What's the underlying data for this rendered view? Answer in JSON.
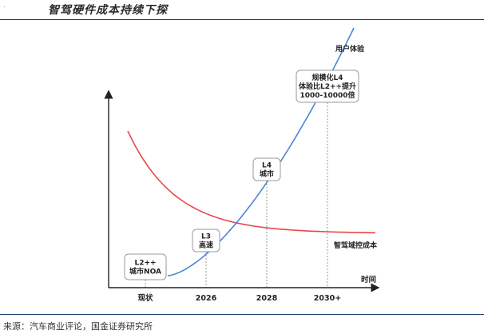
{
  "page": {
    "marker": ".",
    "title": "智驾硬件成本持续下探",
    "source": "来源：汽车商业评论，国金证券研究所"
  },
  "chart_data": {
    "type": "line",
    "title": "",
    "xlabel": "时间",
    "ylabel": "",
    "categories": [
      "现状",
      "2026",
      "2028",
      "2030+"
    ],
    "grid": false,
    "series": [
      {
        "name": "用户体验",
        "color": "#4a86d6",
        "shape": "rising-exponential"
      },
      {
        "name": "智驾域控成本",
        "color": "#e8474b",
        "shape": "falling-decay"
      }
    ],
    "annotations": [
      {
        "category": "现状",
        "lines": [
          "L2++",
          "城市NOA"
        ]
      },
      {
        "category": "2026",
        "lines": [
          "L3",
          "高速"
        ]
      },
      {
        "category": "2028",
        "lines": [
          "L4",
          "城市"
        ]
      },
      {
        "category": "2030+",
        "lines": [
          "规模化L4",
          "体验比L2++提升",
          "1000-10000倍"
        ]
      }
    ]
  }
}
